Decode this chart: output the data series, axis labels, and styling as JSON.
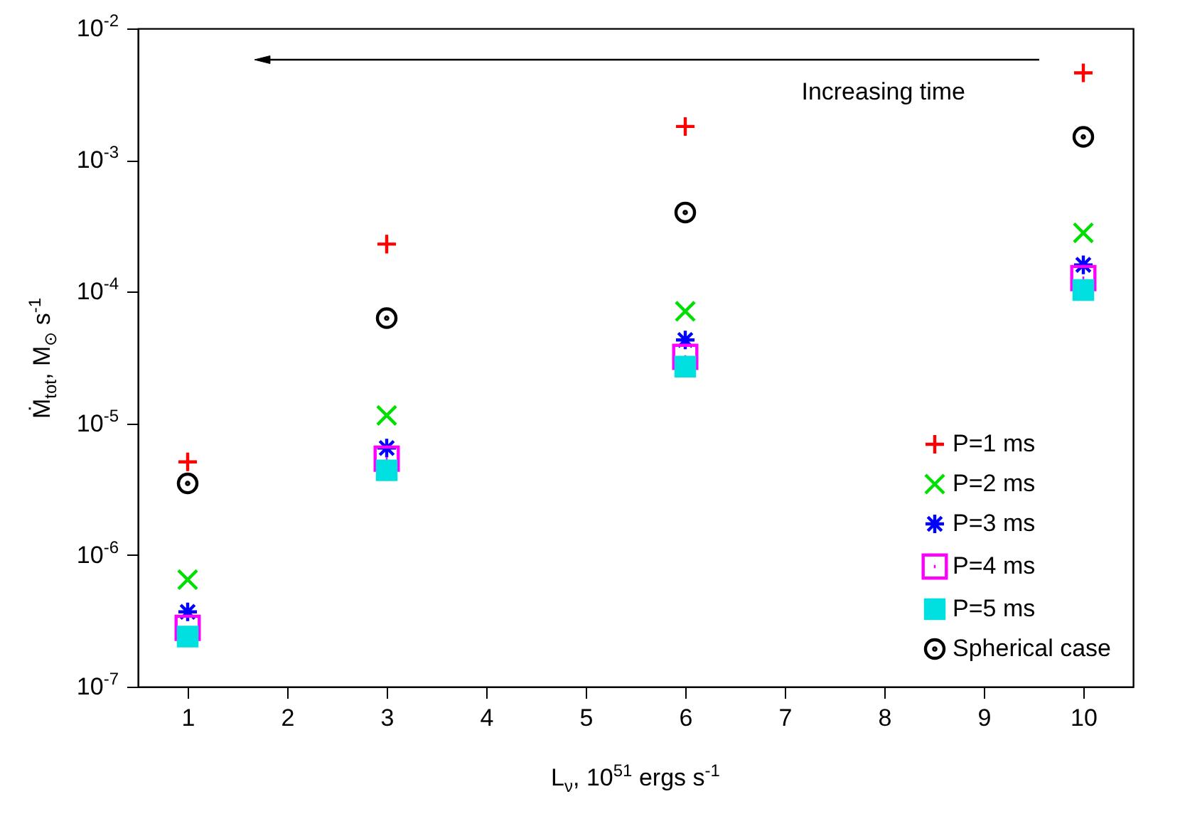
{
  "chart_data": {
    "type": "scatter",
    "xlabel": "L$_{ν}$, 10$^{51}$ ergs s$^{-1}$",
    "ylabel": "Ṁ$_{tot}$, M$_{⊙}$ s$^{-1}$",
    "x": [
      1,
      3,
      6,
      10
    ],
    "xlim": [
      0.5,
      10.5
    ],
    "xticks": [
      1,
      2,
      3,
      4,
      5,
      6,
      7,
      8,
      9,
      10
    ],
    "log": "y",
    "ylim": [
      1e-07,
      0.01
    ],
    "yticks": [
      {
        "value": 1e-07,
        "label": "10$^{-7}$"
      },
      {
        "value": 1e-06,
        "label": "10$^{-6}$"
      },
      {
        "value": 1e-05,
        "label": "10$^{-5}$"
      },
      {
        "value": 0.0001,
        "label": "10$^{-4}$"
      },
      {
        "value": 0.001,
        "label": "10$^{-3}$"
      },
      {
        "value": 0.01,
        "label": "10$^{-2}$"
      }
    ],
    "legend": "bottom right",
    "annotations": [
      "Increasing time"
    ],
    "series": [
      {
        "name": "P=1 ms",
        "color": "#ff0000",
        "values": [
          5.1e-06,
          0.00023,
          0.0018,
          0.0046
        ]
      },
      {
        "name": "P=2 ms",
        "color": "#00e000",
        "values": [
          6.5e-07,
          1.15e-05,
          7.1e-05,
          0.00028
        ]
      },
      {
        "name": "P=3 ms",
        "color": "#0000ff",
        "values": [
          3.7e-07,
          6.5e-06,
          4.3e-05,
          0.00016
        ]
      },
      {
        "name": "P=4 ms",
        "color": "#ff00ff",
        "values": [
          2.8e-07,
          5.4e-06,
          3.2e-05,
          0.000127
        ]
      },
      {
        "name": "P=5 ms",
        "color": "#00e0e0",
        "values": [
          2.4e-07,
          4.4e-06,
          2.7e-05,
          0.000103
        ]
      },
      {
        "name": "Spherical case",
        "color": "#000000",
        "values": [
          3.5e-06,
          6.3e-05,
          0.0004,
          0.0015
        ]
      }
    ]
  }
}
